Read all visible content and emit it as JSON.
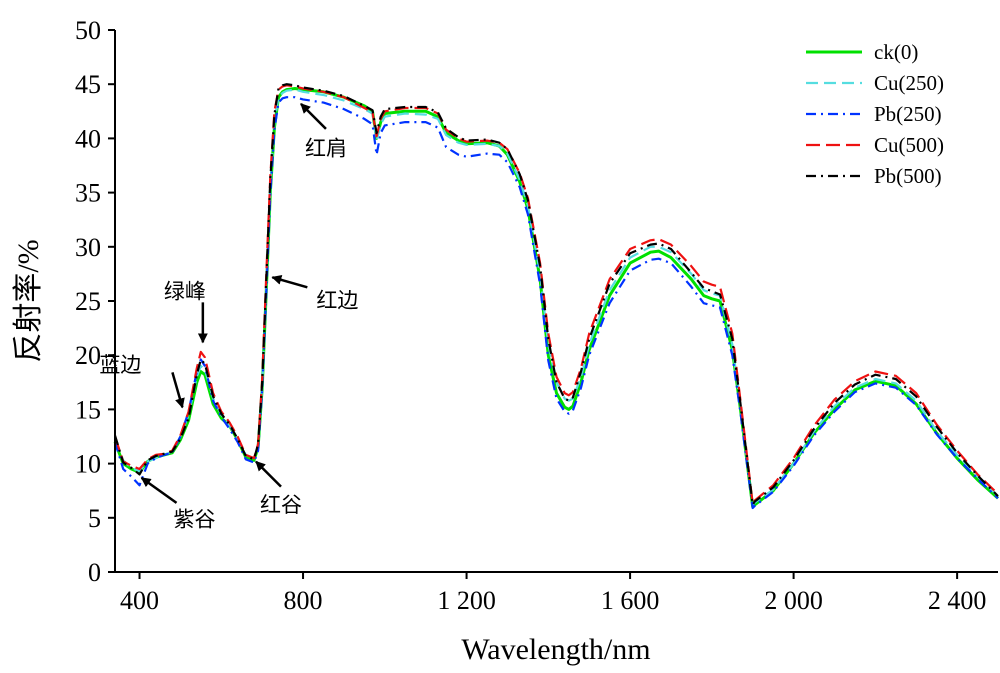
{
  "chart_data": {
    "type": "line",
    "xlabel": "Wavelength/nm",
    "ylabel": "反射率/%",
    "xlim": [
      340,
      2500
    ],
    "ylim": [
      0,
      50
    ],
    "x_ticks": [
      {
        "value": 400,
        "label": "400"
      },
      {
        "value": 800,
        "label": "800"
      },
      {
        "value": 1200,
        "label": "1 200"
      },
      {
        "value": 1600,
        "label": "1 600"
      },
      {
        "value": 2000,
        "label": "2 000"
      },
      {
        "value": 2400,
        "label": "2 400"
      }
    ],
    "y_ticks": [
      {
        "value": 0,
        "label": "0"
      },
      {
        "value": 5,
        "label": "5"
      },
      {
        "value": 10,
        "label": "10"
      },
      {
        "value": 15,
        "label": "15"
      },
      {
        "value": 20,
        "label": "20"
      },
      {
        "value": 25,
        "label": "25"
      },
      {
        "value": 30,
        "label": "30"
      },
      {
        "value": 35,
        "label": "35"
      },
      {
        "value": 40,
        "label": "40"
      },
      {
        "value": 45,
        "label": "45"
      },
      {
        "value": 50,
        "label": "50"
      }
    ],
    "grid": false,
    "legend_position": "top-right",
    "x": [
      340,
      360,
      380,
      400,
      420,
      440,
      460,
      480,
      500,
      520,
      540,
      550,
      560,
      580,
      600,
      620,
      640,
      660,
      680,
      690,
      700,
      710,
      720,
      730,
      740,
      750,
      760,
      780,
      800,
      850,
      900,
      950,
      970,
      980,
      990,
      1000,
      1050,
      1100,
      1130,
      1150,
      1180,
      1200,
      1250,
      1280,
      1300,
      1330,
      1350,
      1380,
      1400,
      1420,
      1440,
      1450,
      1460,
      1480,
      1500,
      1550,
      1600,
      1650,
      1670,
      1700,
      1750,
      1780,
      1800,
      1820,
      1850,
      1870,
      1890,
      1900,
      1905,
      1950,
      2000,
      2050,
      2100,
      2150,
      2200,
      2250,
      2300,
      2350,
      2400,
      2450,
      2500
    ],
    "series": [
      {
        "name": "ck(0)",
        "color": "#00e000",
        "dash": "solid",
        "values": [
          12.0,
          10.0,
          9.5,
          9.2,
          10.2,
          10.6,
          10.8,
          11.0,
          12.2,
          14.0,
          17.5,
          18.5,
          18.2,
          15.5,
          14.2,
          13.5,
          12.2,
          10.6,
          10.3,
          11.5,
          17.0,
          26.0,
          35.0,
          41.0,
          43.8,
          44.3,
          44.5,
          44.6,
          44.5,
          44.3,
          43.8,
          43.0,
          42.5,
          40.0,
          41.5,
          42.3,
          42.5,
          42.5,
          42.0,
          40.5,
          39.8,
          39.5,
          39.6,
          39.3,
          38.5,
          36.0,
          33.5,
          27.0,
          20.0,
          16.5,
          15.2,
          15.0,
          15.3,
          17.5,
          20.5,
          25.5,
          28.5,
          29.5,
          29.6,
          29.0,
          27.0,
          25.5,
          25.2,
          25.0,
          20.5,
          15.0,
          9.0,
          6.0,
          6.2,
          7.5,
          10.0,
          12.8,
          15.0,
          16.8,
          17.6,
          17.2,
          15.5,
          12.8,
          10.5,
          8.5,
          6.8
        ]
      },
      {
        "name": "Cu(250)",
        "color": "#55dde0",
        "dash": "12,6",
        "values": [
          12.2,
          10.3,
          9.6,
          9.3,
          10.2,
          10.5,
          10.8,
          11.1,
          12.5,
          14.5,
          18.0,
          19.0,
          18.7,
          16.0,
          14.5,
          13.5,
          12.3,
          10.8,
          10.5,
          11.6,
          17.2,
          26.5,
          35.5,
          41.5,
          43.8,
          44.2,
          44.4,
          44.5,
          44.3,
          44.0,
          43.5,
          42.7,
          42.3,
          39.8,
          41.3,
          42.0,
          42.3,
          42.2,
          41.8,
          40.3,
          39.6,
          39.4,
          39.5,
          39.3,
          38.6,
          36.2,
          33.8,
          27.5,
          21.0,
          17.5,
          16.0,
          15.8,
          16.0,
          18.0,
          21.0,
          26.0,
          29.0,
          30.0,
          30.0,
          29.5,
          27.5,
          26.0,
          25.7,
          25.5,
          21.0,
          15.3,
          9.2,
          6.2,
          6.4,
          7.6,
          10.0,
          13.0,
          15.3,
          17.0,
          17.8,
          17.4,
          15.8,
          13.0,
          10.8,
          8.8,
          7.0
        ]
      },
      {
        "name": "Pb(250)",
        "color": "#0033ff",
        "dash": "10,5,2,5",
        "values": [
          12.0,
          9.5,
          8.8,
          8.0,
          10.0,
          10.5,
          10.8,
          11.0,
          12.5,
          14.8,
          18.5,
          19.6,
          19.0,
          15.8,
          14.3,
          13.2,
          12.0,
          10.4,
          10.1,
          11.2,
          16.8,
          25.8,
          34.8,
          40.8,
          43.3,
          43.7,
          43.8,
          43.8,
          43.6,
          43.3,
          42.7,
          41.8,
          41.3,
          38.5,
          40.5,
          41.2,
          41.5,
          41.5,
          41.0,
          39.2,
          38.5,
          38.3,
          38.6,
          38.5,
          37.8,
          35.5,
          33.0,
          26.5,
          19.5,
          16.0,
          14.8,
          14.6,
          14.9,
          17.0,
          20.0,
          24.8,
          27.8,
          28.8,
          28.9,
          28.5,
          26.3,
          24.8,
          24.6,
          24.4,
          20.0,
          14.7,
          8.8,
          5.9,
          6.1,
          7.4,
          9.8,
          12.6,
          14.8,
          16.6,
          17.4,
          17.0,
          15.4,
          12.7,
          10.5,
          8.6,
          6.8
        ]
      },
      {
        "name": "Cu(500)",
        "color": "#ee1111",
        "dash": "14,6",
        "values": [
          12.5,
          10.2,
          9.8,
          9.5,
          10.4,
          10.8,
          10.9,
          11.2,
          12.6,
          14.8,
          18.8,
          20.3,
          19.8,
          16.5,
          14.8,
          13.8,
          12.5,
          10.8,
          10.5,
          11.8,
          17.8,
          27.5,
          36.5,
          42.5,
          44.5,
          44.8,
          44.9,
          44.8,
          44.6,
          44.3,
          43.8,
          42.8,
          42.4,
          40.2,
          41.8,
          42.5,
          42.8,
          42.8,
          42.3,
          40.8,
          40.0,
          39.7,
          39.8,
          39.6,
          39.0,
          36.8,
          34.5,
          28.5,
          22.0,
          18.0,
          16.5,
          16.3,
          16.6,
          18.8,
          22.0,
          27.0,
          29.8,
          30.6,
          30.7,
          30.2,
          28.2,
          26.8,
          26.5,
          26.3,
          22.0,
          15.8,
          9.5,
          6.3,
          6.6,
          8.0,
          10.5,
          13.5,
          15.9,
          17.6,
          18.5,
          18.1,
          16.5,
          13.6,
          11.2,
          9.0,
          7.2
        ]
      },
      {
        "name": "Pb(500)",
        "color": "#000000",
        "dash": "10,5,2,5",
        "values": [
          12.6,
          10.1,
          9.6,
          9.0,
          10.3,
          10.7,
          10.9,
          11.1,
          12.3,
          14.2,
          18.2,
          19.6,
          19.2,
          16.2,
          14.6,
          13.6,
          12.3,
          10.7,
          10.4,
          11.8,
          17.5,
          27.0,
          36.2,
          42.2,
          44.6,
          44.9,
          45.0,
          44.9,
          44.7,
          44.4,
          43.9,
          43.0,
          42.6,
          40.5,
          42.0,
          42.7,
          42.9,
          42.9,
          42.4,
          40.9,
          40.1,
          39.8,
          39.9,
          39.6,
          39.0,
          36.7,
          34.3,
          28.2,
          21.5,
          17.5,
          16.0,
          15.8,
          16.1,
          18.5,
          21.5,
          26.6,
          29.4,
          30.2,
          30.3,
          29.8,
          27.6,
          26.2,
          25.9,
          25.6,
          21.5,
          15.5,
          9.3,
          6.2,
          6.5,
          7.8,
          10.3,
          13.2,
          15.6,
          17.3,
          18.2,
          17.8,
          16.2,
          13.4,
          11.0,
          8.9,
          7.0
        ]
      }
    ],
    "annotations": [
      {
        "label": "紫谷",
        "x": 400,
        "y": 8.5
      },
      {
        "label": "蓝边",
        "x": 500,
        "y": 15.0
      },
      {
        "label": "绿峰",
        "x": 550,
        "y": 21.0
      },
      {
        "label": "红谷",
        "x": 680,
        "y": 10.0
      },
      {
        "label": "红边",
        "x": 720,
        "y": 27.0
      },
      {
        "label": "红肩",
        "x": 790,
        "y": 43.0
      }
    ]
  }
}
